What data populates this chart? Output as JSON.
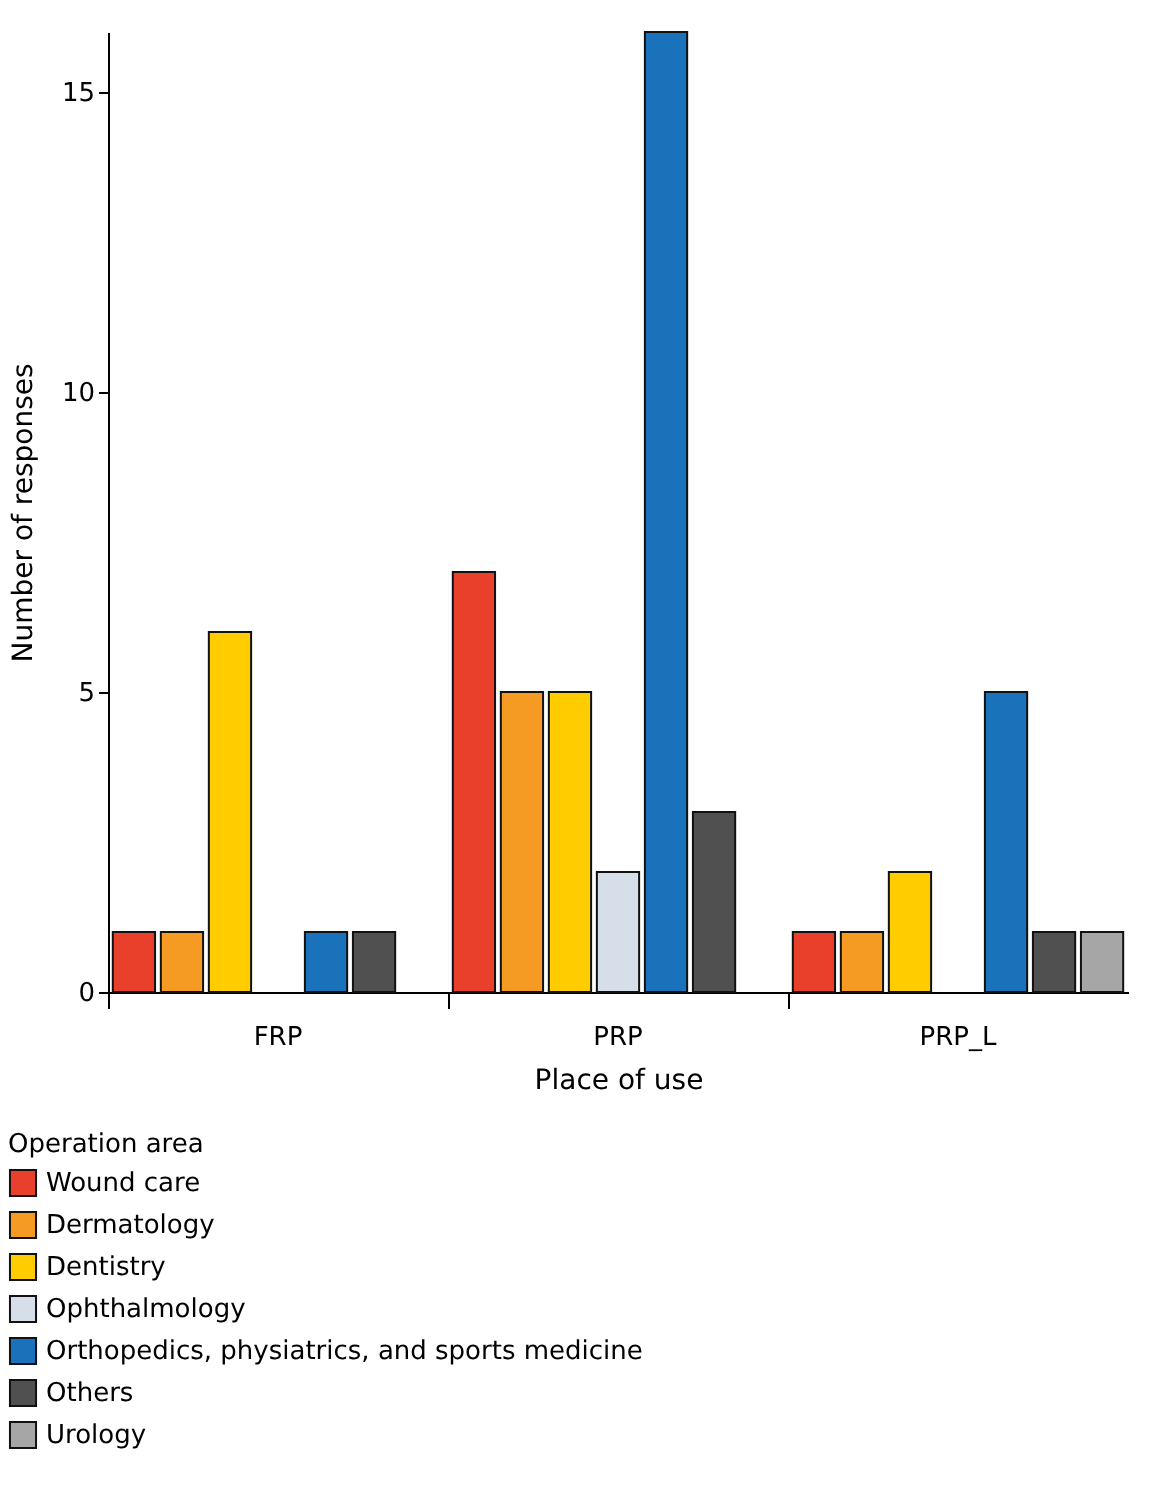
{
  "chart_data": {
    "type": "bar",
    "xlabel": "Place of use",
    "ylabel": "Number of responses",
    "legend_title": "Operation area",
    "legend": "bottom left",
    "categories": [
      "FRP",
      "PRP",
      "PRP_L"
    ],
    "ylim": [
      0,
      16
    ],
    "yticks": [
      0,
      5,
      10,
      15
    ],
    "series": [
      {
        "name": "Wound care",
        "color": "#e8402a",
        "values": [
          1,
          7,
          1
        ]
      },
      {
        "name": "Dermatology",
        "color": "#f59a23",
        "values": [
          1,
          5,
          1
        ]
      },
      {
        "name": "Dentistry",
        "color": "#ffcc00",
        "values": [
          6,
          5,
          2
        ]
      },
      {
        "name": "Ophthalmology",
        "color": "#d6dfe9",
        "values": [
          0,
          2,
          0
        ]
      },
      {
        "name": "Orthopedics, physiatrics, and sports medicine",
        "color": "#1a73ba",
        "values": [
          1,
          16,
          5
        ]
      },
      {
        "name": "Others",
        "color": "#505050",
        "values": [
          1,
          3,
          1
        ]
      },
      {
        "name": "Urology",
        "color": "#a6a6a6",
        "values": [
          0,
          0,
          1
        ]
      }
    ]
  }
}
